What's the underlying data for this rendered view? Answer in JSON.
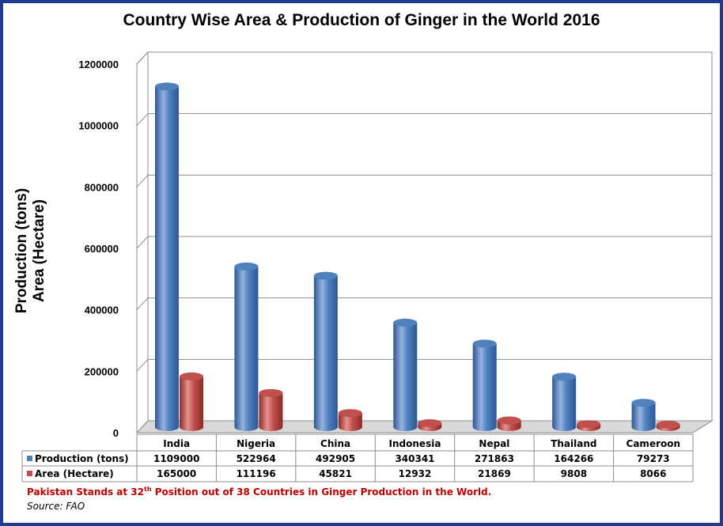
{
  "chart_data": {
    "type": "bar",
    "title": "Country Wise Area & Production of Ginger in the World 2016",
    "ylabel_line1": "Production (tons)",
    "ylabel_line2": "Area (Hectare)",
    "ylim": [
      0,
      1200000
    ],
    "yticks": [
      "0",
      "200000",
      "400000",
      "600000",
      "800000",
      "1000000",
      "1200000"
    ],
    "grid": true,
    "legend": "bottom-table",
    "categories": [
      "India",
      "Nigeria",
      "China",
      "Indonesia",
      "Nepal",
      "Thailand",
      "Cameroon"
    ],
    "series": [
      {
        "name": "Production (tons)",
        "color": "#4f81bd",
        "values": [
          1109000,
          522964,
          492905,
          340341,
          271863,
          164266,
          79273
        ],
        "labels": [
          "1109000",
          "522964",
          "492905",
          "340341",
          "271863",
          "164266",
          "79273"
        ]
      },
      {
        "name": "Area (Hectare)",
        "color": "#c0504d",
        "values": [
          165000,
          111196,
          45821,
          12932,
          21869,
          9808,
          8066
        ],
        "labels": [
          "165000",
          "111196",
          "45821",
          "12932",
          "21869",
          "9808",
          "8066"
        ]
      }
    ]
  },
  "footer": {
    "note_before": "Pakistan Stands at 32",
    "note_sup": "th",
    "note_after": " Position out of 38 Countries in Ginger Production in the World.",
    "source": "Source: FAO"
  }
}
